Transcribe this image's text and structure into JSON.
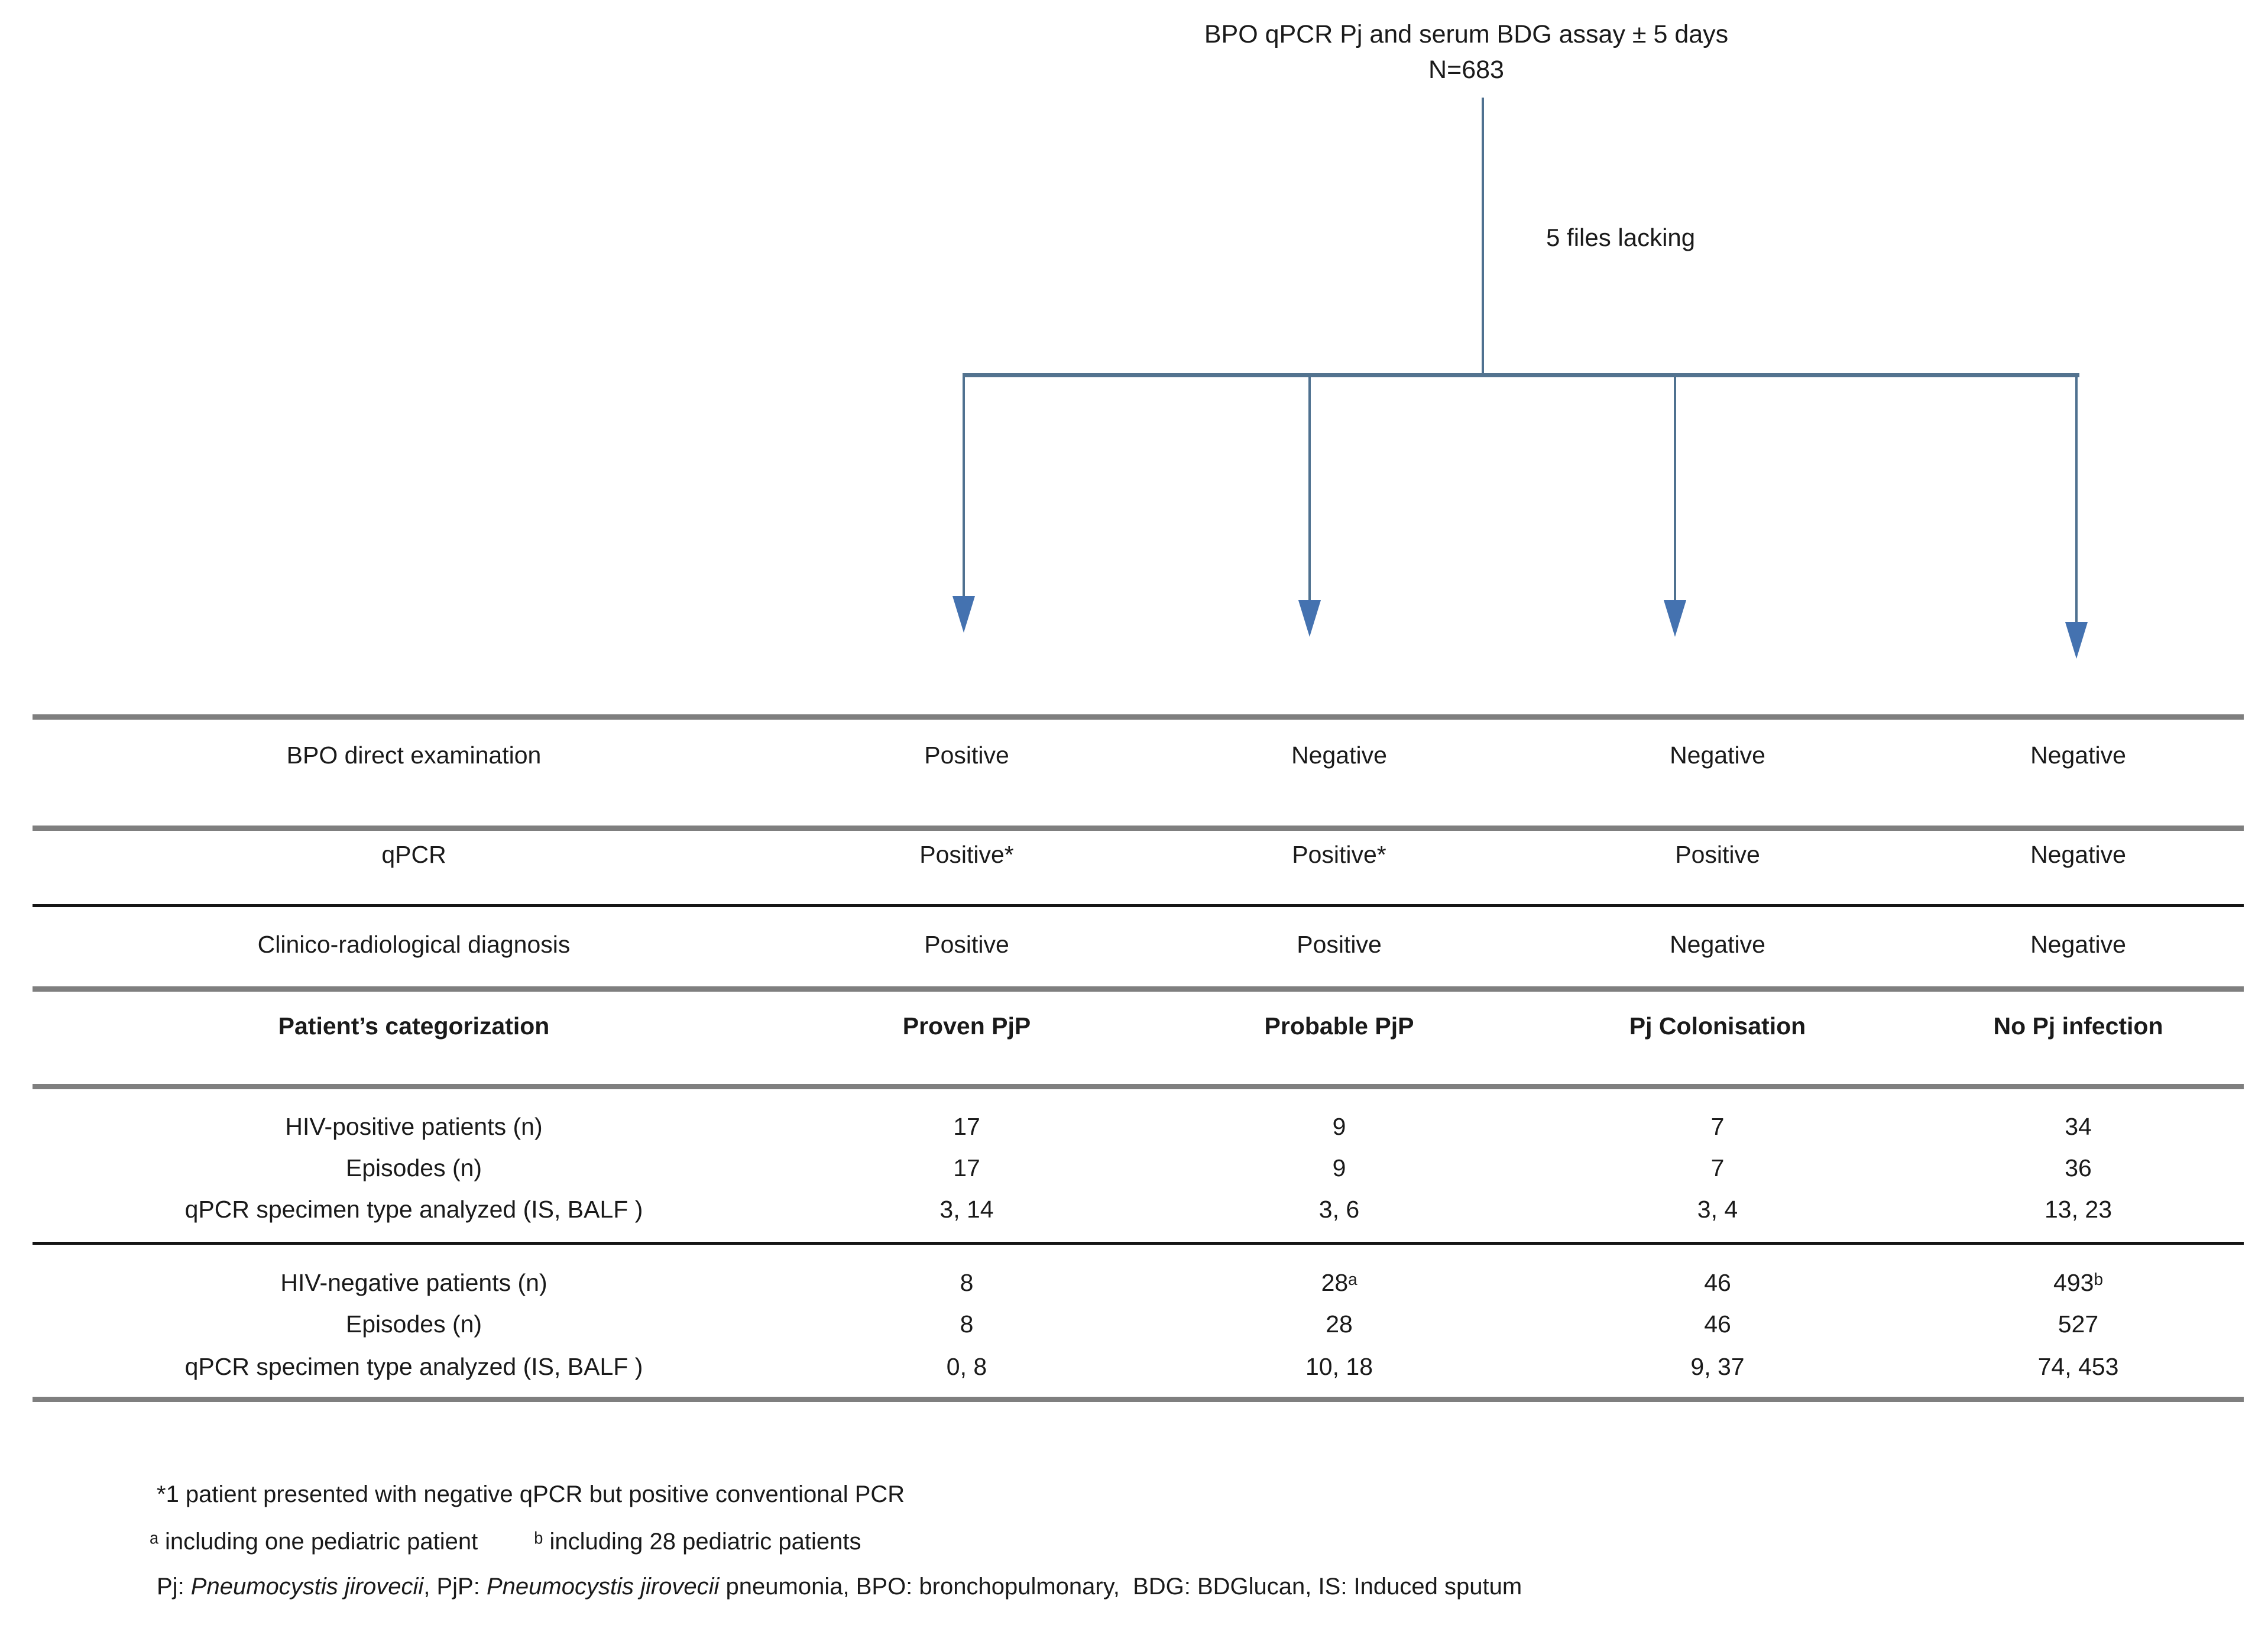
{
  "figure": {
    "title_line1": "BPO qPCR Pj and serum BDG assay ± 5 days",
    "title_line2": "N=683",
    "branch_annotation": "5 files lacking"
  },
  "table": {
    "rows": [
      {
        "id": "bpo",
        "label": "BPO direct examination",
        "cells": [
          "Positive",
          "Negative",
          "Negative",
          "Negative"
        ],
        "bold": false
      },
      {
        "id": "qpcr",
        "label": "qPCR",
        "cells": [
          "Positive*",
          "Positive*",
          "Positive",
          "Negative"
        ],
        "bold": false
      },
      {
        "id": "clinico",
        "label": "Clinico-radiological diagnosis",
        "cells": [
          "Positive",
          "Positive",
          "Negative",
          "Negative"
        ],
        "bold": false
      },
      {
        "id": "categorization",
        "label": "Patient’s categorization",
        "cells": [
          "Proven PjP",
          "Probable PjP",
          "Pj Colonisation",
          "No Pj infection"
        ],
        "bold": true
      },
      {
        "id": "hiv-pos",
        "label": "HIV-positive patients (n)",
        "cells": [
          "17",
          "9",
          "7",
          "34"
        ],
        "bold": false
      },
      {
        "id": "hiv-pos-episodes",
        "label": "Episodes (n)",
        "cells": [
          "17",
          "9",
          "7",
          "36"
        ],
        "bold": false
      },
      {
        "id": "hiv-pos-specimen",
        "label": "qPCR specimen type analyzed (IS, BALF )",
        "cells": [
          "3, 14",
          "3, 6",
          "3, 4",
          "13, 23"
        ],
        "bold": false
      },
      {
        "id": "hiv-neg",
        "label": "HIV-negative patients (n)",
        "cells": [
          "8",
          "28ᵃ",
          "46",
          "493ᵇ"
        ],
        "bold": false
      },
      {
        "id": "hiv-neg-episodes",
        "label": "Episodes (n)",
        "cells": [
          "8",
          "28",
          "46",
          "527"
        ],
        "bold": false
      },
      {
        "id": "hiv-neg-specimen",
        "label": "qPCR specimen type analyzed (IS, BALF )",
        "cells": [
          "0, 8",
          "10, 18",
          "9, 37",
          "74, 453"
        ],
        "bold": false
      }
    ]
  },
  "footnotes": {
    "line1": "*1 patient presented with negative qPCR but positive conventional PCR",
    "line2a": "ᵃ including one pediatric patient",
    "line2b": "ᵇ including 28 pediatric patients",
    "line3_segments": [
      {
        "text": "Pj: ",
        "italic": false
      },
      {
        "text": "Pneumocystis jirovecii",
        "italic": true
      },
      {
        "text": ", PjP: ",
        "italic": false
      },
      {
        "text": "Pneumocystis jirovecii",
        "italic": true
      },
      {
        "text": " pneumonia, BPO: bronchopulmonary,  BDG: BDGlucan, IS: Induced sputum",
        "italic": false
      }
    ]
  },
  "colors": {
    "line_blue": "#4f7190",
    "bar_blue": "#53738f",
    "arrow_blue": "#4472b0",
    "rule_gray": "#7f7f7f",
    "rule_black": "#151515",
    "text": "#1a1a1a"
  }
}
